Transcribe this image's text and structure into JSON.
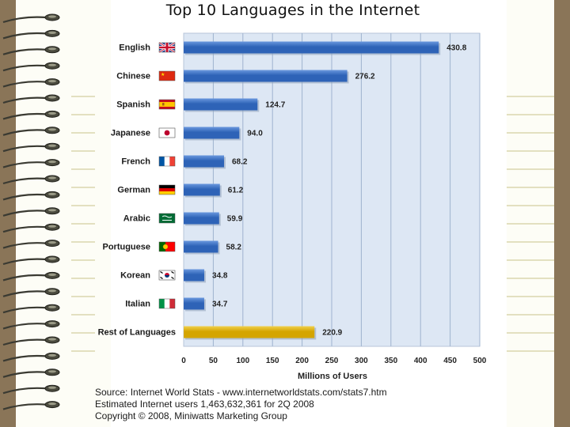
{
  "chart_data": {
    "type": "bar",
    "orientation": "horizontal",
    "title": "Top 10 Languages in the Internet",
    "xlabel": "Millions of Users",
    "xlim": [
      0,
      500
    ],
    "xticks": [
      0,
      50,
      100,
      150,
      200,
      250,
      300,
      350,
      400,
      450,
      500
    ],
    "grid": true,
    "categories": [
      "English",
      "Chinese",
      "Spanish",
      "Japanese",
      "French",
      "German",
      "Arabic",
      "Portuguese",
      "Korean",
      "Italian",
      "Rest of Languages"
    ],
    "values": [
      430.8,
      276.2,
      124.7,
      94.0,
      68.2,
      61.2,
      59.9,
      58.2,
      34.8,
      34.7,
      220.9
    ],
    "value_labels": [
      "430.8",
      "276.2",
      "124.7",
      "94.0",
      "68.2",
      "61.2",
      "59.9",
      "58.2",
      "34.8",
      "34.7",
      "220.9"
    ],
    "flags": [
      "uk-flag-icon",
      "china-flag-icon",
      "spain-flag-icon",
      "japan-flag-icon",
      "france-flag-icon",
      "germany-flag-icon",
      "saudi-arabia-flag-icon",
      "portugal-flag-icon",
      "korea-flag-icon",
      "italy-flag-icon",
      ""
    ],
    "colors": {
      "bar": "#2e63b7",
      "bar_highlight": "#6a98de",
      "rest_bar": "#d4a500",
      "rest_highlight": "#f1d04d",
      "plot_background": "#dde7f4",
      "grid": "#9fb3cf"
    }
  },
  "notes": {
    "source": "Source: Internet World Stats - www.internetworldstats.com/stats7.htm",
    "estimate": "Estimated Internet users 1,463,632,361 for 2Q 2008",
    "copyright": "Copyright © 2008, Miniwatts Marketing Group"
  }
}
